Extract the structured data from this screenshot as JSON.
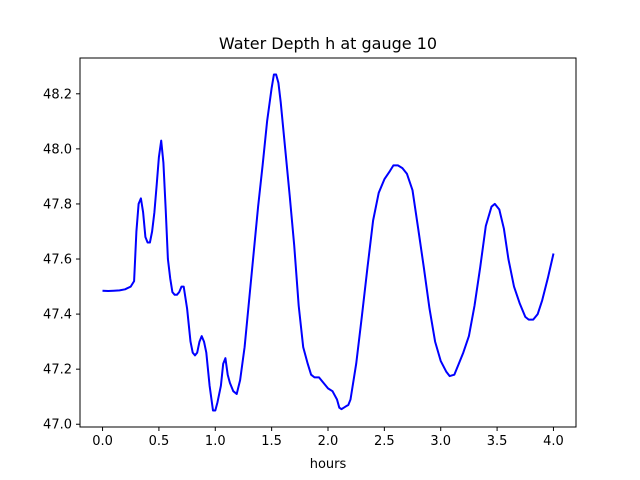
{
  "chart_data": {
    "type": "line",
    "title": "Water Depth h at gauge 10",
    "xlabel": "hours",
    "ylabel": "",
    "xlim": [
      -0.2,
      4.2
    ],
    "ylim": [
      46.99,
      48.33
    ],
    "grid": false,
    "legend": "none",
    "x_ticks": [
      0.0,
      0.5,
      1.0,
      1.5,
      2.0,
      2.5,
      3.0,
      3.5,
      4.0
    ],
    "x_tick_labels": [
      "0.0",
      "0.5",
      "1.0",
      "1.5",
      "2.0",
      "2.5",
      "3.0",
      "3.5",
      "4.0"
    ],
    "y_ticks": [
      47.0,
      47.2,
      47.4,
      47.6,
      47.8,
      48.0,
      48.2
    ],
    "y_tick_labels": [
      "47.0",
      "47.2",
      "47.4",
      "47.6",
      "47.8",
      "48.0",
      "48.2"
    ],
    "series": [
      {
        "color": "#0000ff",
        "x": [
          0.0,
          0.05,
          0.1,
          0.15,
          0.2,
          0.25,
          0.28,
          0.3,
          0.32,
          0.34,
          0.36,
          0.38,
          0.4,
          0.42,
          0.44,
          0.46,
          0.48,
          0.5,
          0.52,
          0.54,
          0.56,
          0.58,
          0.6,
          0.62,
          0.64,
          0.66,
          0.68,
          0.7,
          0.72,
          0.75,
          0.78,
          0.8,
          0.82,
          0.84,
          0.86,
          0.88,
          0.9,
          0.92,
          0.95,
          0.98,
          1.0,
          1.02,
          1.05,
          1.07,
          1.09,
          1.11,
          1.13,
          1.16,
          1.19,
          1.22,
          1.26,
          1.3,
          1.34,
          1.38,
          1.42,
          1.46,
          1.5,
          1.52,
          1.54,
          1.56,
          1.58,
          1.62,
          1.66,
          1.7,
          1.74,
          1.78,
          1.82,
          1.85,
          1.88,
          1.92,
          1.96,
          2.0,
          2.04,
          2.08,
          2.1,
          2.12,
          2.14,
          2.16,
          2.18,
          2.2,
          2.25,
          2.3,
          2.35,
          2.4,
          2.45,
          2.5,
          2.55,
          2.58,
          2.62,
          2.66,
          2.7,
          2.75,
          2.8,
          2.85,
          2.9,
          2.95,
          3.0,
          3.05,
          3.08,
          3.12,
          3.16,
          3.2,
          3.25,
          3.3,
          3.35,
          3.4,
          3.45,
          3.48,
          3.52,
          3.56,
          3.6,
          3.65,
          3.7,
          3.75,
          3.78,
          3.82,
          3.86,
          3.9,
          3.95,
          4.0
        ],
        "y": [
          47.485,
          47.484,
          47.485,
          47.486,
          47.49,
          47.5,
          47.52,
          47.7,
          47.8,
          47.82,
          47.77,
          47.68,
          47.66,
          47.66,
          47.7,
          47.77,
          47.87,
          47.97,
          48.03,
          47.95,
          47.78,
          47.6,
          47.53,
          47.48,
          47.47,
          47.47,
          47.48,
          47.5,
          47.5,
          47.42,
          47.3,
          47.26,
          47.25,
          47.26,
          47.3,
          47.32,
          47.3,
          47.26,
          47.14,
          47.05,
          47.05,
          47.08,
          47.14,
          47.22,
          47.24,
          47.18,
          47.15,
          47.12,
          47.11,
          47.16,
          47.28,
          47.45,
          47.62,
          47.79,
          47.94,
          48.1,
          48.22,
          48.27,
          48.27,
          48.24,
          48.17,
          48.0,
          47.83,
          47.65,
          47.43,
          47.28,
          47.22,
          47.18,
          47.17,
          47.17,
          47.15,
          47.13,
          47.12,
          47.09,
          47.06,
          47.055,
          47.06,
          47.065,
          47.07,
          47.09,
          47.22,
          47.39,
          47.57,
          47.74,
          47.84,
          47.89,
          47.92,
          47.94,
          47.94,
          47.93,
          47.91,
          47.85,
          47.71,
          47.57,
          47.42,
          47.3,
          47.23,
          47.19,
          47.175,
          47.18,
          47.22,
          47.26,
          47.32,
          47.43,
          47.57,
          47.72,
          47.79,
          47.8,
          47.78,
          47.71,
          47.6,
          47.5,
          47.44,
          47.39,
          47.38,
          47.38,
          47.4,
          47.45,
          47.53,
          47.62
        ]
      }
    ]
  }
}
